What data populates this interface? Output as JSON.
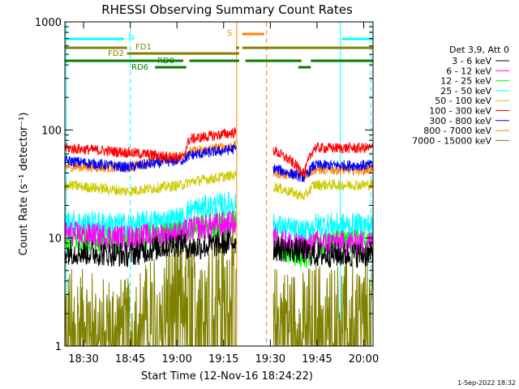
{
  "chart_data": {
    "type": "line",
    "title": "RHESSI Observing Summary Count Rates",
    "xlabel": "Start Time (12-Nov-16 18:24:22)",
    "ylabel": "Count Rate (s⁻¹ detector⁻¹)",
    "y_scale": "log",
    "ylim": [
      1,
      1000
    ],
    "xlim_minutes_after_1824": [
      0,
      99
    ],
    "x_ticks": [
      "18:30",
      "18:45",
      "19:00",
      "19:15",
      "19:30",
      "19:45",
      "20:00"
    ],
    "y_ticks": [
      "1",
      "10",
      "100",
      "1000"
    ],
    "legend_title": "Det 3,9, Att 0",
    "legend_placement": "right",
    "footer": "1-Sep-2022 18:32",
    "series": [
      {
        "name": "3 - 6 keV",
        "color": "#000000",
        "values": [
          7.5,
          7,
          9,
          8,
          8,
          7.5,
          7
        ]
      },
      {
        "name": "6 - 12 keV",
        "color": "#ff00ff",
        "values": [
          11,
          10,
          11,
          12,
          10,
          8,
          9
        ]
      },
      {
        "name": "12 - 25 keV",
        "color": "#00ff00",
        "values": [
          10,
          9.5,
          11,
          12,
          9,
          6,
          9
        ]
      },
      {
        "name": "25 - 50 keV",
        "color": "#00ffff",
        "values": [
          14,
          13,
          15,
          18,
          13,
          11,
          13
        ]
      },
      {
        "name": "50 - 100 keV",
        "color": "#cccc00",
        "values": [
          31,
          27,
          31,
          33,
          30,
          24,
          31
        ]
      },
      {
        "name": "100 - 300 keV",
        "color": "#ff0000",
        "values": [
          68,
          62,
          55,
          82,
          65,
          40,
          68
        ]
      },
      {
        "name": "300 - 800 keV",
        "color": "#0000ff",
        "values": [
          52,
          45,
          53,
          58,
          44,
          36,
          47
        ]
      },
      {
        "name": "800 - 7000 keV",
        "color": "#ff8000",
        "values": [
          46,
          45,
          58,
          62,
          40,
          38,
          43
        ]
      },
      {
        "name": "7000 - 15000 keV",
        "color": "#808000",
        "values": [
          2,
          1.5,
          3.5,
          4,
          2,
          1.8,
          2.2
        ]
      }
    ],
    "flags": [
      {
        "label": "N",
        "color": "#00ffff"
      },
      {
        "label": "S",
        "color": "#ff8000"
      },
      {
        "label": "FD1",
        "color": "#808000"
      },
      {
        "label": "FD2",
        "color": "#808000"
      },
      {
        "label": "RD0",
        "color": "#008000"
      },
      {
        "label": "RD6",
        "color": "#008000"
      }
    ]
  }
}
